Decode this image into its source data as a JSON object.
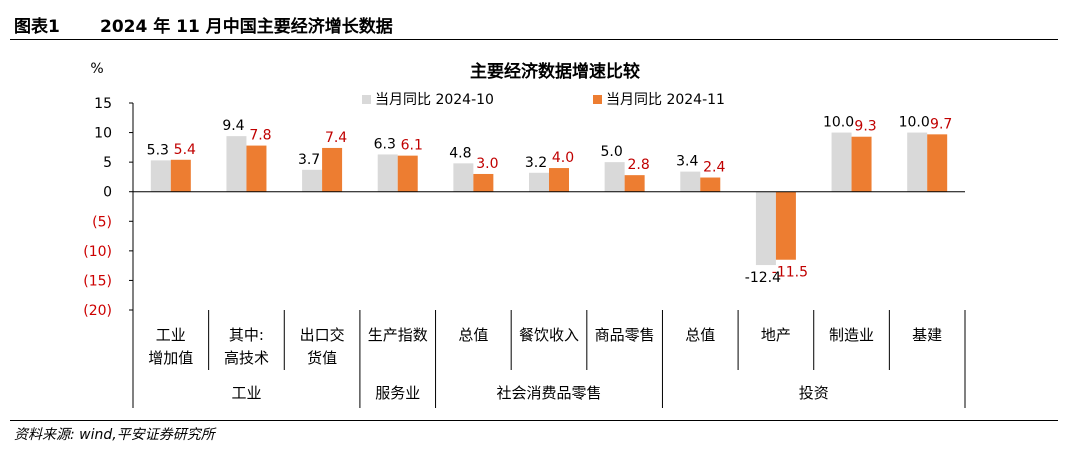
{
  "header": {
    "label": "图表1",
    "title": "2024 年 11 月中国主要经济增长数据"
  },
  "source": "资料来源: wind,平安证券研究所",
  "colors": {
    "series1": "#d9d9d9",
    "series2": "#ed7d31",
    "neg_text": "#cc0000",
    "label2_text": "#c00000"
  },
  "chart_data": {
    "type": "bar",
    "title": "主要经济数据增速比较",
    "ylabel": "%",
    "ylim": [
      -20,
      15
    ],
    "yticks": [
      15,
      10,
      5,
      0,
      -5,
      -10,
      -15,
      -20
    ],
    "ytick_labels": [
      "15",
      "10",
      "5",
      "0",
      "(5)",
      "(10)",
      "(15)",
      "(20)"
    ],
    "categories": [
      [
        "工业",
        "增加值"
      ],
      [
        "其中:",
        "高技术"
      ],
      [
        "出口交",
        "货值"
      ],
      [
        "生产指数"
      ],
      [
        "总值"
      ],
      [
        "餐饮收入"
      ],
      [
        "商品零售"
      ],
      [
        "总值"
      ],
      [
        "地产"
      ],
      [
        "制造业"
      ],
      [
        "基建"
      ]
    ],
    "groups": [
      {
        "label": "工业",
        "span": [
          0,
          2
        ]
      },
      {
        "label": "服务业",
        "span": [
          3,
          3
        ]
      },
      {
        "label": "社会消费品零售",
        "span": [
          4,
          6
        ]
      },
      {
        "label": "投资",
        "span": [
          7,
          10
        ]
      }
    ],
    "series": [
      {
        "name": "当月同比 2024-10",
        "values": [
          5.3,
          9.4,
          3.7,
          6.3,
          4.8,
          3.2,
          5.0,
          3.4,
          -12.4,
          10.0,
          10.0
        ],
        "labels": [
          "5.3",
          "9.4",
          "3.7",
          "6.3",
          "4.8",
          "3.2",
          "5.0",
          "3.4",
          "-12.4",
          "10.0",
          "10.0"
        ]
      },
      {
        "name": "当月同比 2024-11",
        "values": [
          5.4,
          7.8,
          7.4,
          6.1,
          3.0,
          4.0,
          2.8,
          2.4,
          -11.5,
          9.3,
          9.7
        ],
        "labels": [
          "5.4",
          "7.8",
          "7.4",
          "6.1",
          "3.0",
          "4.0",
          "2.8",
          "2.4",
          "-11.5",
          "9.3",
          "9.7"
        ]
      }
    ],
    "legend": "top-center"
  }
}
